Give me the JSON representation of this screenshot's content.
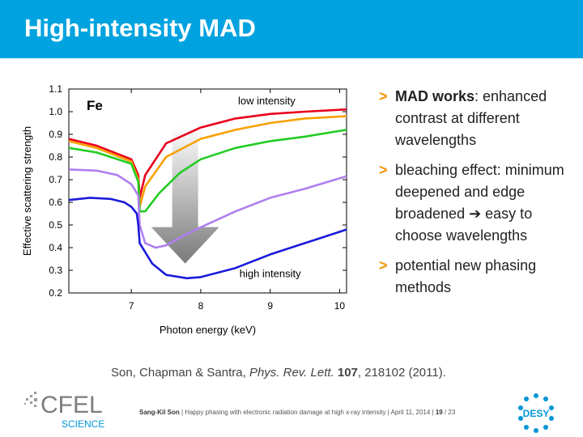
{
  "slide": {
    "title": "High-intensity MAD"
  },
  "chart_data": {
    "type": "line",
    "element_label": "Fe",
    "xlabel": "Photon energy (keV)",
    "ylabel": "Effective scattering strength",
    "xlim": [
      6.1,
      10.1
    ],
    "ylim": [
      0.2,
      1.1
    ],
    "x_ticks": [
      7,
      8,
      9,
      10
    ],
    "y_ticks": [
      0.2,
      0.3,
      0.4,
      0.5,
      0.6,
      0.7,
      0.8,
      0.9,
      1.0,
      1.1
    ],
    "y_tick_labels": [
      "0.2",
      "0.3",
      "0.4",
      "0.5",
      "0.6",
      "0.7",
      "0.8",
      "0.9",
      "1.0",
      "1.1"
    ],
    "annotations": {
      "low": "low intensity",
      "high": "high intensity"
    },
    "series": [
      {
        "color": "#e8001c",
        "x": [
          6.1,
          6.5,
          7.0,
          7.1,
          7.12,
          7.2,
          7.5,
          8.0,
          8.5,
          9.0,
          9.5,
          10.1
        ],
        "values": [
          0.88,
          0.85,
          0.79,
          0.72,
          0.62,
          0.72,
          0.86,
          0.93,
          0.97,
          0.99,
          1.0,
          1.01
        ]
      },
      {
        "color": "#f7a000",
        "x": [
          6.1,
          6.5,
          7.0,
          7.1,
          7.12,
          7.2,
          7.5,
          8.0,
          8.5,
          9.0,
          9.5,
          10.1
        ],
        "values": [
          0.87,
          0.84,
          0.78,
          0.7,
          0.58,
          0.67,
          0.8,
          0.88,
          0.92,
          0.95,
          0.97,
          0.98
        ]
      },
      {
        "color": "#22cc22",
        "x": [
          6.1,
          6.5,
          7.0,
          7.1,
          7.12,
          7.2,
          7.4,
          7.7,
          8.0,
          8.5,
          9.0,
          9.5,
          10.1
        ],
        "values": [
          0.84,
          0.82,
          0.77,
          0.69,
          0.56,
          0.56,
          0.64,
          0.73,
          0.79,
          0.84,
          0.87,
          0.89,
          0.92
        ]
      },
      {
        "color": "#b07ef0",
        "x": [
          6.1,
          6.5,
          6.8,
          7.0,
          7.1,
          7.12,
          7.2,
          7.35,
          7.5,
          7.8,
          8.0,
          8.5,
          9.0,
          9.5,
          10.1
        ],
        "values": [
          0.745,
          0.74,
          0.72,
          0.68,
          0.63,
          0.5,
          0.42,
          0.4,
          0.41,
          0.46,
          0.49,
          0.56,
          0.62,
          0.66,
          0.715
        ]
      },
      {
        "color": "#1a1adb",
        "x": [
          6.1,
          6.4,
          6.7,
          6.9,
          7.0,
          7.08,
          7.1,
          7.12,
          7.2,
          7.3,
          7.5,
          7.8,
          8.0,
          8.5,
          9.0,
          9.5,
          10.1
        ],
        "values": [
          0.61,
          0.62,
          0.615,
          0.6,
          0.58,
          0.55,
          0.5,
          0.42,
          0.38,
          0.33,
          0.28,
          0.265,
          0.27,
          0.31,
          0.37,
          0.42,
          0.48
        ]
      }
    ]
  },
  "bullets": [
    {
      "marker": ">",
      "bold": "MAD works",
      "text": ": enhanced contrast at different wavelengths"
    },
    {
      "marker": ">",
      "bold": "",
      "text": "bleaching effect: minimum deepened and edge broadened ➔ easy to choose wavelengths"
    },
    {
      "marker": ">",
      "bold": "",
      "text": "potential new phasing methods"
    }
  ],
  "citation": {
    "authors": "Son, Chapman & Santra, ",
    "journal": "Phys. Rev. Lett.",
    "volume": "107",
    "rest": ", 218102 (2011)."
  },
  "footer": {
    "presenter": "Sang-Kil Son",
    "talk": " | Happy phasing with electronic radiation damage at high x-ray intensity | April 11, 2014 | ",
    "page": "19",
    "total": " / 23",
    "logo_cfel_text": "CFEL",
    "logo_cfel_sub": "SCIENCE",
    "logo_desy_text": "DESY"
  },
  "colors": {
    "title_bar": "#00a3df",
    "bullet_arrow": "#f39200",
    "desy_blue": "#0096d6"
  }
}
